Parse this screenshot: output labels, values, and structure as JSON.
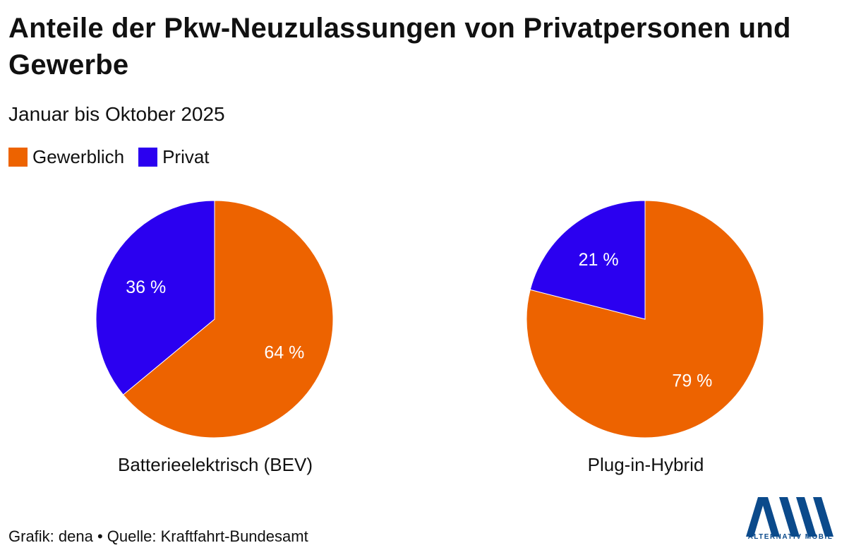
{
  "title": "Anteile der Pkw-Neuzulassungen von Privatpersonen und Gewerbe",
  "subtitle": "Januar bis Oktober 2025",
  "colors": {
    "gewerblich": "#ED6300",
    "privat": "#2B00F0",
    "logo": "#0B4A8B"
  },
  "legend": [
    {
      "label": "Gewerblich",
      "color": "#ED6300"
    },
    {
      "label": "Privat",
      "color": "#2B00F0"
    }
  ],
  "chart_data": [
    {
      "type": "pie",
      "title": "Batterieelektrisch (BEV)",
      "slices": [
        {
          "name": "Gewerblich",
          "value": 64,
          "label": "64 %",
          "color": "#ED6300"
        },
        {
          "name": "Privat",
          "value": 36,
          "label": "36 %",
          "color": "#2B00F0"
        }
      ],
      "start": "12 o'clock",
      "direction": "clockwise"
    },
    {
      "type": "pie",
      "title": "Plug-in-Hybrid",
      "slices": [
        {
          "name": "Gewerblich",
          "value": 79,
          "label": "79 %",
          "color": "#ED6300"
        },
        {
          "name": "Privat",
          "value": 21,
          "label": "21 %",
          "color": "#2B00F0"
        }
      ],
      "start": "12 o'clock",
      "direction": "clockwise"
    }
  ],
  "footer": {
    "source": "Grafik: dena • Quelle: Kraftfahrt-Bundesamt"
  },
  "logo": {
    "name": "alternativ-mobil-logo",
    "text": "ALTERNATIV MOBIL"
  }
}
